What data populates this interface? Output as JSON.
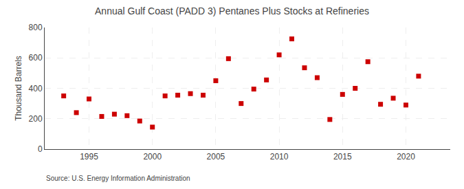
{
  "chart_data": {
    "type": "scatter",
    "title": "Annual Gulf Coast (PADD 3) Pentanes Plus Stocks at Refineries",
    "ylabel": "Thousand Barrels",
    "annotations": [
      "Source: U.S. Energy Information Administration"
    ],
    "x": [
      1993,
      1994,
      1995,
      1996,
      1997,
      1998,
      1999,
      2000,
      2001,
      2002,
      2003,
      2004,
      2005,
      2006,
      2007,
      2008,
      2009,
      2010,
      2011,
      2012,
      2013,
      2014,
      2015,
      2016,
      2017,
      2018,
      2019,
      2020,
      2021
    ],
    "values": [
      350,
      240,
      330,
      215,
      230,
      220,
      185,
      145,
      350,
      355,
      365,
      355,
      450,
      595,
      300,
      395,
      455,
      620,
      725,
      535,
      470,
      195,
      360,
      400,
      575,
      295,
      335,
      290,
      480
    ],
    "color": "#cc0000",
    "marker": "square",
    "xlim": [
      1991.5,
      2023.5
    ],
    "xticks": [
      1995,
      2000,
      2005,
      2010,
      2015,
      2020
    ],
    "ylim": [
      0,
      800
    ],
    "yticks": [
      0,
      200,
      400,
      600,
      800
    ],
    "grid": true
  }
}
